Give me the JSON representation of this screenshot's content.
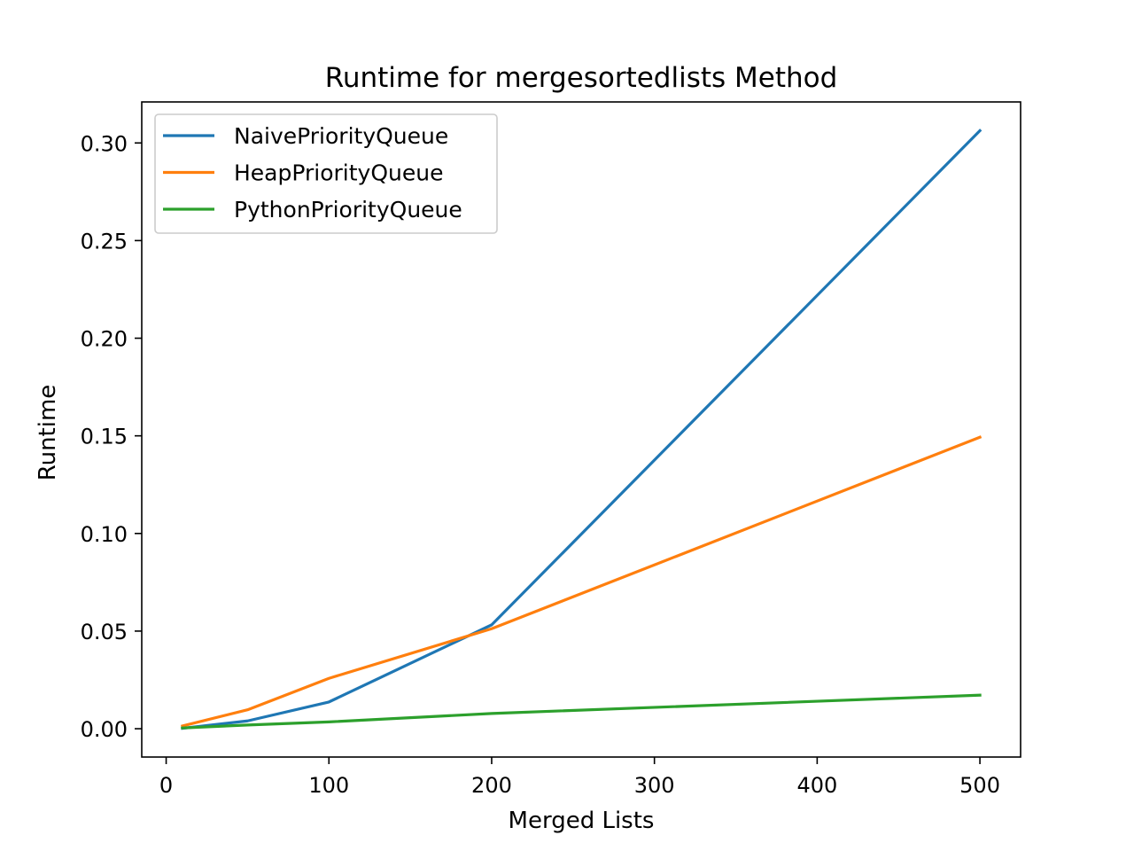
{
  "chart_data": {
    "type": "line",
    "title": "Runtime for mergesortedlists Method",
    "xlabel": "Merged Lists",
    "ylabel": "Runtime",
    "xlim": [
      -15,
      525
    ],
    "ylim": [
      -0.0145,
      0.321
    ],
    "xticks": [
      0,
      100,
      200,
      300,
      400,
      500
    ],
    "xtick_labels": [
      "0",
      "100",
      "200",
      "300",
      "400",
      "500"
    ],
    "yticks": [
      0.0,
      0.05,
      0.1,
      0.15,
      0.2,
      0.25,
      0.3
    ],
    "ytick_labels": [
      "0.00",
      "0.05",
      "0.10",
      "0.15",
      "0.20",
      "0.25",
      "0.30"
    ],
    "grid": false,
    "legend_position": "top-left",
    "x": [
      10,
      50,
      100,
      200,
      500
    ],
    "series": [
      {
        "name": "NaivePriorityQueue",
        "color": "#1f77b4",
        "values": [
          0.0002,
          0.004,
          0.0137,
          0.0532,
          0.3063
        ]
      },
      {
        "name": "HeapPriorityQueue",
        "color": "#ff7f0e",
        "values": [
          0.0014,
          0.0097,
          0.0258,
          0.0512,
          0.1493
        ]
      },
      {
        "name": "PythonPriorityQueue",
        "color": "#2ca02c",
        "values": [
          0.0004,
          0.0019,
          0.0035,
          0.0078,
          0.0172
        ]
      }
    ]
  }
}
